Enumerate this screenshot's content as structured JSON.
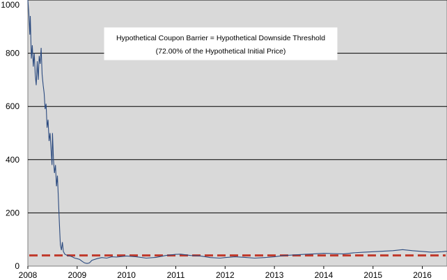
{
  "chart_data": {
    "type": "line",
    "title": "",
    "xlabel": "",
    "ylabel": "",
    "xlim": [
      2008,
      2016.5
    ],
    "ylim": [
      0,
      1000
    ],
    "y_ticks": [
      "0",
      "200",
      "400",
      "600",
      "800",
      "1000"
    ],
    "x_ticks": [
      "2008",
      "2009",
      "2010",
      "2011",
      "2012",
      "2013",
      "2014",
      "2015",
      "2016"
    ],
    "grid": "horizontal",
    "annotation": {
      "line1": "Hypothetical Coupon Barrier = Hypothetical Downside Threshold",
      "line2": "(72.00% of the Hypothetical Initial Price)"
    },
    "barrier": {
      "value": 40,
      "style": "dashed",
      "color": "#c0392b"
    },
    "series": [
      {
        "color": "#2b4a7f",
        "points": [
          [
            2008.0,
            1000
          ],
          [
            2008.02,
            950
          ],
          [
            2008.04,
            870
          ],
          [
            2008.05,
            940
          ],
          [
            2008.07,
            780
          ],
          [
            2008.09,
            830
          ],
          [
            2008.11,
            750
          ],
          [
            2008.13,
            800
          ],
          [
            2008.15,
            720
          ],
          [
            2008.17,
            680
          ],
          [
            2008.19,
            770
          ],
          [
            2008.21,
            700
          ],
          [
            2008.23,
            790
          ],
          [
            2008.25,
            760
          ],
          [
            2008.27,
            820
          ],
          [
            2008.29,
            720
          ],
          [
            2008.31,
            680
          ],
          [
            2008.33,
            650
          ],
          [
            2008.35,
            590
          ],
          [
            2008.37,
            610
          ],
          [
            2008.39,
            520
          ],
          [
            2008.41,
            550
          ],
          [
            2008.43,
            470
          ],
          [
            2008.45,
            500
          ],
          [
            2008.47,
            440
          ],
          [
            2008.49,
            380
          ],
          [
            2008.5,
            500
          ],
          [
            2008.52,
            400
          ],
          [
            2008.54,
            350
          ],
          [
            2008.56,
            380
          ],
          [
            2008.58,
            300
          ],
          [
            2008.6,
            340
          ],
          [
            2008.62,
            250
          ],
          [
            2008.64,
            160
          ],
          [
            2008.66,
            80
          ],
          [
            2008.68,
            60
          ],
          [
            2008.7,
            90
          ],
          [
            2008.72,
            55
          ],
          [
            2008.75,
            45
          ],
          [
            2008.8,
            40
          ],
          [
            2008.85,
            38
          ],
          [
            2008.9,
            35
          ],
          [
            2008.95,
            30
          ],
          [
            2009.0,
            28
          ],
          [
            2009.05,
            25
          ],
          [
            2009.1,
            18
          ],
          [
            2009.15,
            12
          ],
          [
            2009.2,
            10
          ],
          [
            2009.25,
            12
          ],
          [
            2009.3,
            22
          ],
          [
            2009.4,
            28
          ],
          [
            2009.5,
            32
          ],
          [
            2009.6,
            30
          ],
          [
            2009.7,
            35
          ],
          [
            2009.8,
            34
          ],
          [
            2009.9,
            36
          ],
          [
            2010.0,
            38
          ],
          [
            2010.2,
            35
          ],
          [
            2010.4,
            30
          ],
          [
            2010.6,
            33
          ],
          [
            2010.8,
            40
          ],
          [
            2011.0,
            44
          ],
          [
            2011.1,
            45
          ],
          [
            2011.3,
            40
          ],
          [
            2011.5,
            38
          ],
          [
            2011.7,
            32
          ],
          [
            2011.9,
            30
          ],
          [
            2012.0,
            32
          ],
          [
            2012.2,
            35
          ],
          [
            2012.4,
            33
          ],
          [
            2012.6,
            30
          ],
          [
            2012.8,
            32
          ],
          [
            2013.0,
            35
          ],
          [
            2013.2,
            40
          ],
          [
            2013.4,
            42
          ],
          [
            2013.6,
            44
          ],
          [
            2013.8,
            46
          ],
          [
            2014.0,
            48
          ],
          [
            2014.2,
            47
          ],
          [
            2014.4,
            46
          ],
          [
            2014.6,
            50
          ],
          [
            2014.8,
            52
          ],
          [
            2015.0,
            54
          ],
          [
            2015.2,
            56
          ],
          [
            2015.4,
            58
          ],
          [
            2015.6,
            62
          ],
          [
            2015.8,
            58
          ],
          [
            2016.0,
            55
          ],
          [
            2016.2,
            52
          ],
          [
            2016.4,
            54
          ],
          [
            2016.5,
            56
          ]
        ]
      }
    ]
  }
}
